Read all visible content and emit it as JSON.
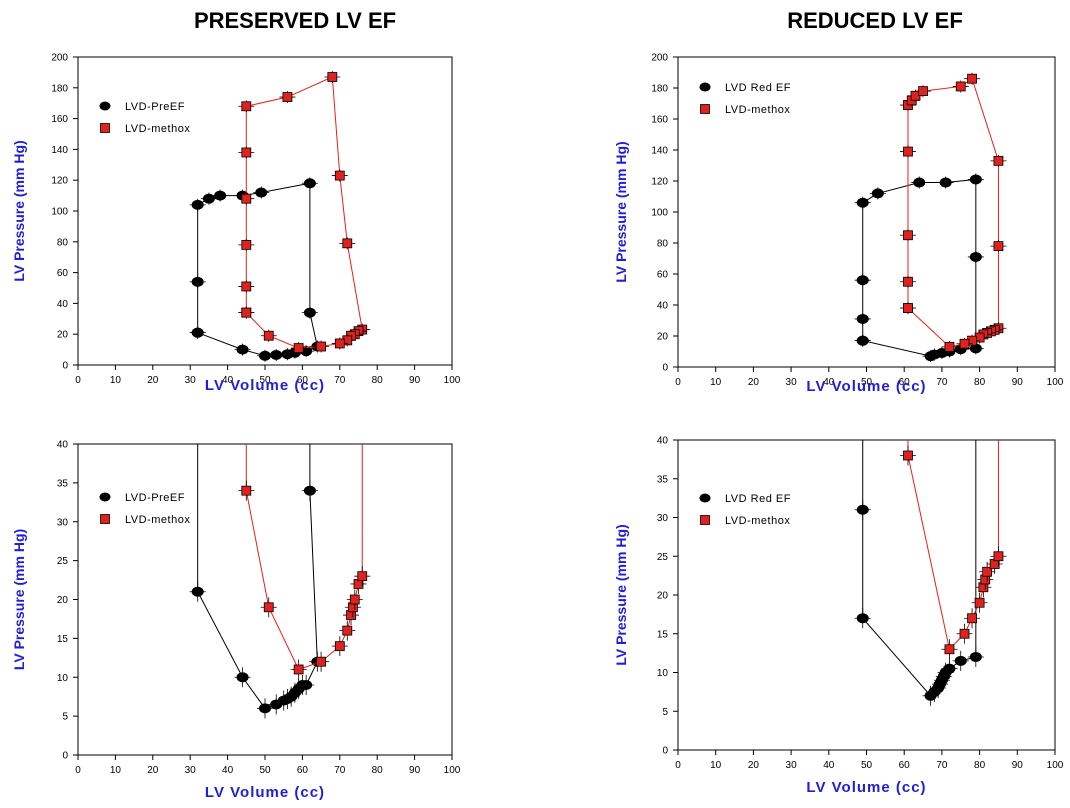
{
  "columns": {
    "left_title": "PRESERVED LV EF",
    "right_title": "REDUCED LV EF"
  },
  "colors": {
    "methox": "#e0221e",
    "baseline": "#000000",
    "axis_title": "#1f1fd6"
  },
  "chart_data": [
    {
      "type": "scatter",
      "panel": "top-left",
      "xlabel": "LV Volume (cc)",
      "ylabel": "LV Pressure (mm Hg)",
      "xlim": [
        0,
        100
      ],
      "ylim": [
        0,
        200
      ],
      "xticks": [
        0,
        10,
        20,
        30,
        40,
        50,
        60,
        70,
        80,
        90,
        100
      ],
      "yticks": [
        0,
        20,
        40,
        60,
        80,
        100,
        120,
        140,
        160,
        180,
        200
      ],
      "grid": false,
      "legend_position": "top-left",
      "series": [
        {
          "name": "LVD-PreEF",
          "marker": "circle",
          "color": "#000000",
          "points": [
            [
              32,
              21
            ],
            [
              32,
              54
            ],
            [
              32,
              104
            ],
            [
              35,
              108
            ],
            [
              38,
              110
            ],
            [
              44,
              110
            ],
            [
              49,
              112
            ],
            [
              62,
              118
            ],
            [
              62,
              34
            ],
            [
              64,
              12
            ],
            [
              61,
              9
            ],
            [
              58,
              8
            ],
            [
              56,
              7
            ],
            [
              53,
              6.5
            ],
            [
              50,
              6
            ],
            [
              44,
              10
            ],
            [
              32,
              21
            ]
          ]
        },
        {
          "name": "LVD-methox",
          "marker": "square",
          "color": "#e0221e",
          "points": [
            [
              45,
              34
            ],
            [
              45,
              51
            ],
            [
              45,
              78
            ],
            [
              45,
              108
            ],
            [
              45,
              138
            ],
            [
              45,
              168
            ],
            [
              56,
              174
            ],
            [
              68,
              187
            ],
            [
              70,
              123
            ],
            [
              72,
              79
            ],
            [
              76,
              23
            ],
            [
              75,
              22
            ],
            [
              74,
              20
            ],
            [
              73,
              19
            ],
            [
              72,
              16
            ],
            [
              70,
              14
            ],
            [
              65,
              12
            ],
            [
              59,
              11
            ],
            [
              51,
              19
            ],
            [
              45,
              34
            ]
          ]
        }
      ]
    },
    {
      "type": "scatter",
      "panel": "top-right",
      "xlabel": "LV Volume (cc)",
      "ylabel": "LV Pressure (mm Hg)",
      "xlim": [
        0,
        100
      ],
      "ylim": [
        0,
        200
      ],
      "xticks": [
        0,
        10,
        20,
        30,
        40,
        50,
        60,
        70,
        80,
        90,
        100
      ],
      "yticks": [
        0,
        20,
        40,
        60,
        80,
        100,
        120,
        140,
        160,
        180,
        200
      ],
      "grid": false,
      "legend_position": "top-left",
      "series": [
        {
          "name": "LVD Red EF",
          "marker": "circle",
          "color": "#000000",
          "points": [
            [
              49,
              17
            ],
            [
              49,
              31
            ],
            [
              49,
              56
            ],
            [
              49,
              106
            ],
            [
              53,
              112
            ],
            [
              64,
              119
            ],
            [
              71,
              119
            ],
            [
              79,
              121
            ],
            [
              79,
              71
            ],
            [
              79,
              12
            ],
            [
              75,
              11.5
            ],
            [
              72,
              10
            ],
            [
              70,
              9
            ],
            [
              68,
              8
            ],
            [
              67,
              7
            ],
            [
              49,
              17
            ]
          ]
        },
        {
          "name": "LVD-methox",
          "marker": "square",
          "color": "#e0221e",
          "points": [
            [
              61,
              38
            ],
            [
              61,
              55
            ],
            [
              61,
              85
            ],
            [
              61,
              139
            ],
            [
              61,
              169
            ],
            [
              62,
              172
            ],
            [
              63,
              175
            ],
            [
              65,
              178
            ],
            [
              75,
              181
            ],
            [
              78,
              186
            ],
            [
              85,
              133
            ],
            [
              85,
              78
            ],
            [
              85,
              25
            ],
            [
              84,
              24
            ],
            [
              83,
              23
            ],
            [
              82,
              22
            ],
            [
              81,
              21
            ],
            [
              80,
              19
            ],
            [
              78,
              17
            ],
            [
              76,
              15
            ],
            [
              72,
              13
            ],
            [
              61,
              38
            ]
          ]
        }
      ]
    },
    {
      "type": "scatter",
      "panel": "bottom-left",
      "xlabel": "LV Volume (cc)",
      "ylabel": "LV Pressure (mm Hg)",
      "xlim": [
        0,
        100
      ],
      "ylim": [
        0,
        40
      ],
      "xticks": [
        0,
        10,
        20,
        30,
        40,
        50,
        60,
        70,
        80,
        90,
        100
      ],
      "yticks": [
        0,
        5,
        10,
        15,
        20,
        25,
        30,
        35,
        40
      ],
      "grid": false,
      "legend_position": "top-left",
      "series": [
        {
          "name": "LVD-PreEF",
          "marker": "circle",
          "color": "#000000",
          "points": [
            [
              32,
              40
            ],
            [
              32,
              21
            ],
            [
              44,
              10
            ],
            [
              50,
              6
            ],
            [
              53,
              6.5
            ],
            [
              55,
              7
            ],
            [
              56,
              7.2
            ],
            [
              57,
              7.5
            ],
            [
              58,
              8
            ],
            [
              59,
              8.5
            ],
            [
              60,
              9
            ],
            [
              61,
              9
            ],
            [
              64,
              12
            ],
            [
              62,
              34
            ],
            [
              62,
              40
            ]
          ]
        },
        {
          "name": "LVD-methox",
          "marker": "square",
          "color": "#e0221e",
          "points": [
            [
              45,
              40
            ],
            [
              45,
              34
            ],
            [
              51,
              19
            ],
            [
              59,
              11
            ],
            [
              65,
              12
            ],
            [
              70,
              14
            ],
            [
              72,
              16
            ],
            [
              73,
              18
            ],
            [
              73.5,
              19
            ],
            [
              74,
              20
            ],
            [
              75,
              22
            ],
            [
              76,
              23
            ],
            [
              76,
              40
            ]
          ]
        }
      ]
    },
    {
      "type": "scatter",
      "panel": "bottom-right",
      "xlabel": "LV Volume (cc)",
      "ylabel": "LV Pressure (mm Hg)",
      "xlim": [
        0,
        100
      ],
      "ylim": [
        0,
        40
      ],
      "xticks": [
        0,
        10,
        20,
        30,
        40,
        50,
        60,
        70,
        80,
        90,
        100
      ],
      "yticks": [
        0,
        5,
        10,
        15,
        20,
        25,
        30,
        35,
        40
      ],
      "grid": false,
      "legend_position": "top-left",
      "series": [
        {
          "name": "LVD Red EF",
          "marker": "circle",
          "color": "#000000",
          "points": [
            [
              49,
              40
            ],
            [
              49,
              31
            ],
            [
              49,
              17
            ],
            [
              67,
              7
            ],
            [
              68,
              7.5
            ],
            [
              69,
              8
            ],
            [
              69.5,
              8.5
            ],
            [
              70,
              9
            ],
            [
              70.5,
              9.5
            ],
            [
              71,
              10
            ],
            [
              72,
              10.5
            ],
            [
              75,
              11.5
            ],
            [
              79,
              12
            ],
            [
              79,
              40
            ]
          ]
        },
        {
          "name": "LVD-methox",
          "marker": "square",
          "color": "#e0221e",
          "points": [
            [
              61,
              40
            ],
            [
              61,
              38
            ],
            [
              72,
              13
            ],
            [
              76,
              15
            ],
            [
              78,
              17
            ],
            [
              80,
              19
            ],
            [
              81,
              21
            ],
            [
              81.5,
              22
            ],
            [
              82,
              23
            ],
            [
              84,
              24
            ],
            [
              85,
              25
            ],
            [
              85,
              40
            ]
          ]
        }
      ]
    }
  ]
}
